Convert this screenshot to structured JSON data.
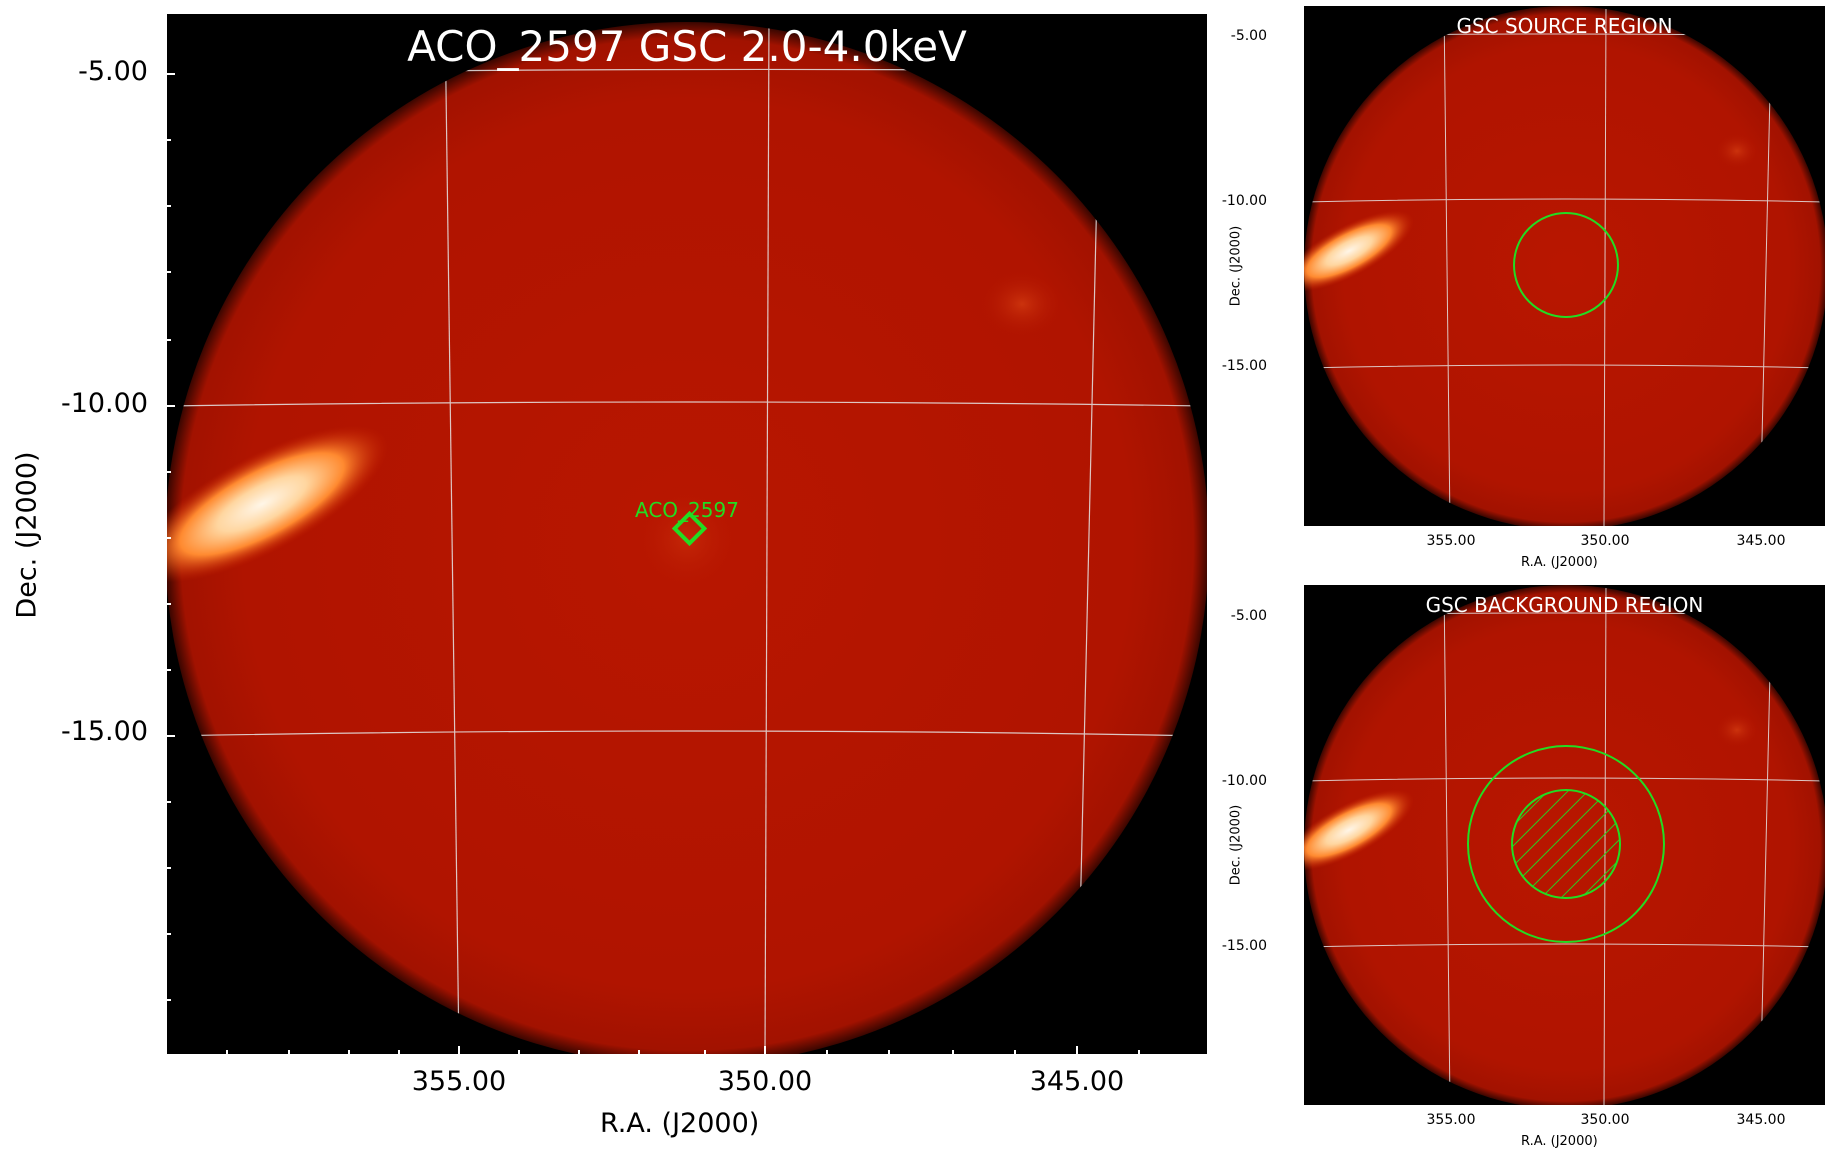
{
  "main": {
    "title": "ACO_2597 GSC 2.0-4.0keV",
    "source_label": "ACO_2597",
    "y_ticks": [
      "-5.00",
      "-10.00",
      "-15.00"
    ],
    "x_ticks": [
      "355.00",
      "350.00",
      "345.00"
    ],
    "xlabel": "R.A. (J2000)",
    "ylabel": "Dec. (J2000)"
  },
  "source_panel": {
    "title": "GSC SOURCE REGION",
    "y_ticks": [
      "-5.00",
      "-10.00",
      "-15.00"
    ],
    "x_ticks": [
      "355.00",
      "350.00",
      "345.00"
    ],
    "xlabel": "R.A. (J2000)",
    "ylabel": "Dec. (J2000)"
  },
  "background_panel": {
    "title": "GSC BACKGROUND REGION",
    "y_ticks": [
      "-5.00",
      "-10.00",
      "-15.00"
    ],
    "x_ticks": [
      "355.00",
      "350.00",
      "345.00"
    ],
    "xlabel": "R.A. (J2000)",
    "ylabel": "Dec. (J2000)"
  },
  "colors": {
    "disk": "#b21400",
    "bright_source": "#fff0d8",
    "marker": "#22dd22",
    "grid": "#e6e6e6"
  }
}
